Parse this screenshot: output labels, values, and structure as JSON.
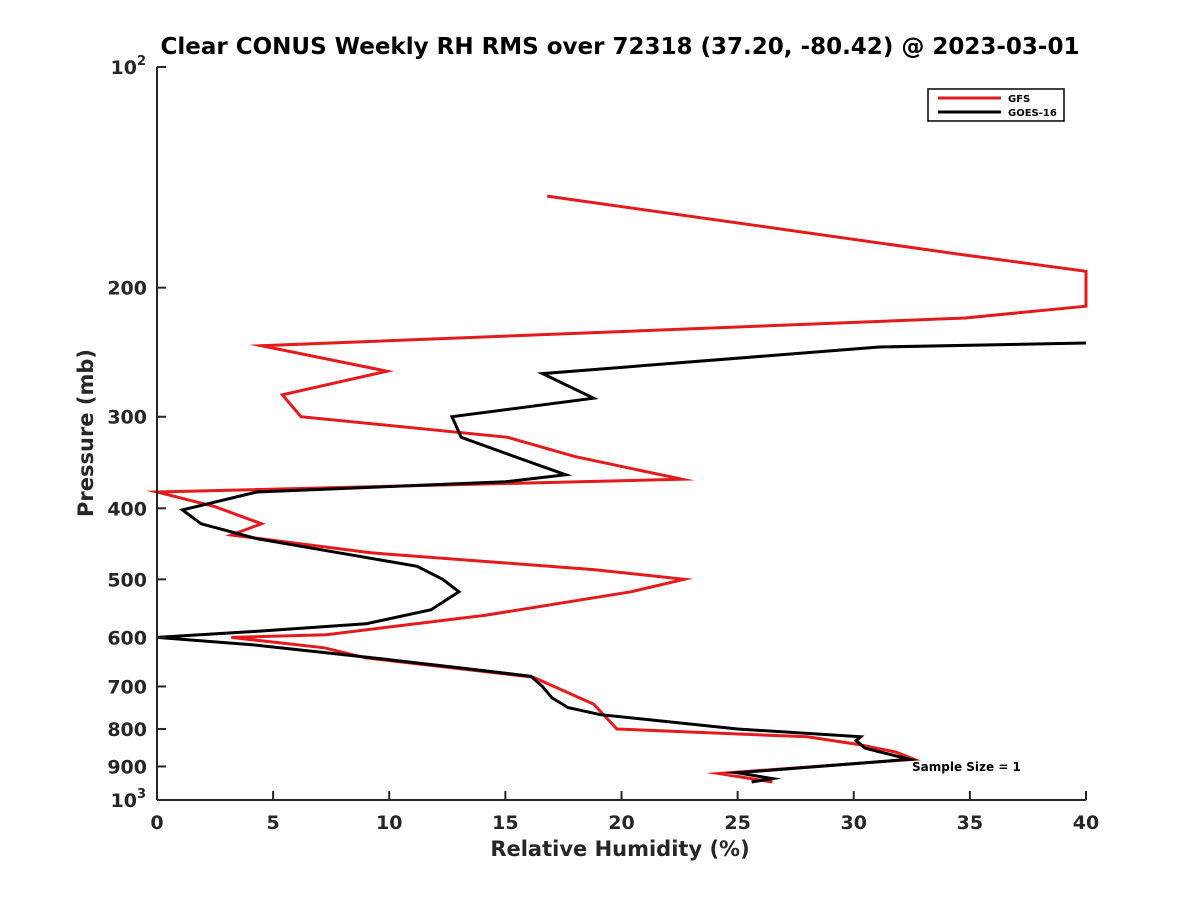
{
  "chart_data": {
    "type": "line",
    "title": "Clear CONUS Weekly RH RMS over 72318 (37.20, -80.42) @ 2023-03-01",
    "xlabel": "Relative Humidity (%)",
    "ylabel": "Pressure (mb)",
    "xlim": [
      0,
      40
    ],
    "ylim": [
      100,
      1000
    ],
    "y_scale": "log",
    "y_reversed": true,
    "grid": false,
    "legend_position": "top-right",
    "x_ticks": [
      "0",
      "5",
      "10",
      "15",
      "20",
      "25",
      "30",
      "35",
      "40"
    ],
    "y_ticks": [
      {
        "value": 100,
        "base": "10",
        "exp": "2"
      },
      {
        "value": 200,
        "label": "200"
      },
      {
        "value": 300,
        "label": "300"
      },
      {
        "value": 400,
        "label": "400"
      },
      {
        "value": 500,
        "label": "500"
      },
      {
        "value": 600,
        "label": "600"
      },
      {
        "value": 700,
        "label": "700"
      },
      {
        "value": 800,
        "label": "800"
      },
      {
        "value": 900,
        "label": "900"
      },
      {
        "value": 1000,
        "base": "10",
        "exp": "3"
      }
    ],
    "annotation": "Sample Size = 1",
    "series": [
      {
        "name": "GFS",
        "color": "#e41a1c",
        "points": [
          [
            16.8,
            150
          ],
          [
            34.5,
            180
          ],
          [
            40,
            190
          ],
          [
            40,
            212
          ],
          [
            34.8,
            220
          ],
          [
            4.5,
            240
          ],
          [
            9.9,
            260
          ],
          [
            5.4,
            280
          ],
          [
            6.2,
            300
          ],
          [
            15.1,
            320
          ],
          [
            18.0,
            340
          ],
          [
            22.6,
            365
          ],
          [
            0,
            380
          ],
          [
            2.5,
            398
          ],
          [
            4.5,
            420
          ],
          [
            3.2,
            435
          ],
          [
            9.2,
            460
          ],
          [
            18.8,
            485
          ],
          [
            22.7,
            500
          ],
          [
            20.4,
            520
          ],
          [
            14.1,
            560
          ],
          [
            7.3,
            595
          ],
          [
            3.2,
            600
          ],
          [
            7.2,
            620
          ],
          [
            9.0,
            640
          ],
          [
            16.2,
            680
          ],
          [
            17.1,
            700
          ],
          [
            18.8,
            740
          ],
          [
            19.8,
            800
          ],
          [
            28.0,
            820
          ],
          [
            30.2,
            840
          ],
          [
            31.8,
            860
          ],
          [
            32.6,
            880
          ],
          [
            24.2,
            920
          ],
          [
            26.5,
            945
          ]
        ]
      },
      {
        "name": "GOES-16",
        "color": "#000000",
        "points": [
          [
            40,
            238
          ],
          [
            31.1,
            241
          ],
          [
            16.6,
            262
          ],
          [
            18.8,
            283
          ],
          [
            12.7,
            300
          ],
          [
            13.1,
            320
          ],
          [
            15.4,
            340
          ],
          [
            17.6,
            360
          ],
          [
            15.0,
            368
          ],
          [
            4.3,
            380
          ],
          [
            1.1,
            402
          ],
          [
            1.9,
            420
          ],
          [
            4.3,
            440
          ],
          [
            11.2,
            480
          ],
          [
            12.3,
            500
          ],
          [
            13.0,
            520
          ],
          [
            11.8,
            550
          ],
          [
            9.0,
            575
          ],
          [
            4.5,
            588
          ],
          [
            0,
            600
          ],
          [
            4.3,
            615
          ],
          [
            9.3,
            640
          ],
          [
            13.0,
            660
          ],
          [
            16.1,
            678
          ],
          [
            16.6,
            700
          ],
          [
            17.0,
            725
          ],
          [
            17.7,
            748
          ],
          [
            19.1,
            765
          ],
          [
            25.0,
            800
          ],
          [
            30.3,
            820
          ],
          [
            30.1,
            830
          ],
          [
            30.5,
            850
          ],
          [
            32.4,
            880
          ],
          [
            25.0,
            918
          ],
          [
            26.5,
            935
          ],
          [
            25.6,
            945
          ]
        ]
      }
    ]
  }
}
